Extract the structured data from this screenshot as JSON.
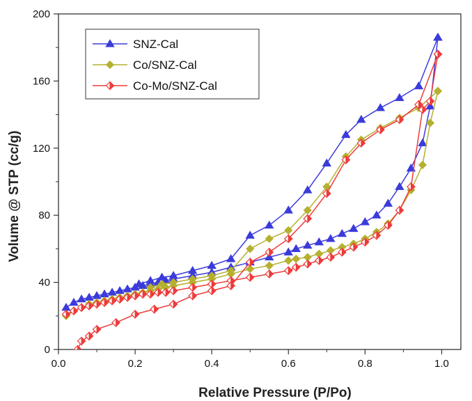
{
  "chart_data": {
    "type": "line",
    "title": "",
    "xlabel": "Relative Pressure (P/Po)",
    "ylabel": "Volume @ STP (cc/g)",
    "xlim": [
      0,
      1.05
    ],
    "ylim": [
      0,
      200
    ],
    "xticks": [
      0.0,
      0.2,
      0.4,
      0.6,
      0.8,
      1.0
    ],
    "xtick_labels": [
      "0.0",
      "0.2",
      "0.4",
      "0.6",
      "0.8",
      "1.0"
    ],
    "yticks": [
      0,
      40,
      80,
      120,
      160,
      200
    ],
    "ytick_labels": [
      "0",
      "40",
      "80",
      "120",
      "160",
      "200"
    ],
    "grid": false,
    "legend_position": "top-left",
    "series": [
      {
        "name": "SNZ-Cal",
        "color": "#3b3bdc",
        "marker": "triangle",
        "adsorption": [
          [
            0.02,
            25
          ],
          [
            0.04,
            28
          ],
          [
            0.06,
            30
          ],
          [
            0.08,
            31
          ],
          [
            0.1,
            32
          ],
          [
            0.12,
            33
          ],
          [
            0.14,
            34
          ],
          [
            0.16,
            35
          ],
          [
            0.18,
            36
          ],
          [
            0.2,
            37
          ],
          [
            0.22,
            38
          ],
          [
            0.24,
            39
          ],
          [
            0.26,
            40
          ],
          [
            0.28,
            41
          ],
          [
            0.3,
            42
          ],
          [
            0.35,
            44
          ],
          [
            0.4,
            46
          ],
          [
            0.45,
            49
          ],
          [
            0.5,
            52
          ],
          [
            0.55,
            55
          ],
          [
            0.6,
            58
          ],
          [
            0.62,
            60
          ],
          [
            0.65,
            62
          ],
          [
            0.68,
            64
          ],
          [
            0.71,
            66
          ],
          [
            0.74,
            69
          ],
          [
            0.77,
            72
          ],
          [
            0.8,
            76
          ],
          [
            0.83,
            80
          ],
          [
            0.86,
            87
          ],
          [
            0.89,
            97
          ],
          [
            0.92,
            108
          ],
          [
            0.95,
            123
          ],
          [
            0.97,
            145
          ],
          [
            0.99,
            186
          ]
        ],
        "desorption": [
          [
            0.99,
            186
          ],
          [
            0.94,
            157
          ],
          [
            0.89,
            150
          ],
          [
            0.84,
            144
          ],
          [
            0.79,
            137
          ],
          [
            0.75,
            128
          ],
          [
            0.7,
            111
          ],
          [
            0.65,
            95
          ],
          [
            0.6,
            83
          ],
          [
            0.55,
            74
          ],
          [
            0.5,
            68
          ],
          [
            0.45,
            54
          ],
          [
            0.4,
            50
          ],
          [
            0.35,
            47
          ],
          [
            0.3,
            44
          ],
          [
            0.27,
            43
          ],
          [
            0.24,
            41
          ],
          [
            0.21,
            39
          ]
        ]
      },
      {
        "name": "Co/SNZ-Cal",
        "color": "#b5b02e",
        "marker": "diamond",
        "adsorption": [
          [
            0.02,
            20
          ],
          [
            0.04,
            23
          ],
          [
            0.06,
            25
          ],
          [
            0.08,
            27
          ],
          [
            0.1,
            28
          ],
          [
            0.12,
            29
          ],
          [
            0.14,
            30
          ],
          [
            0.16,
            31
          ],
          [
            0.18,
            32
          ],
          [
            0.2,
            33
          ],
          [
            0.22,
            34
          ],
          [
            0.24,
            35
          ],
          [
            0.26,
            36
          ],
          [
            0.28,
            37
          ],
          [
            0.3,
            38
          ],
          [
            0.35,
            40
          ],
          [
            0.4,
            42
          ],
          [
            0.45,
            45
          ],
          [
            0.5,
            48
          ],
          [
            0.55,
            50
          ],
          [
            0.6,
            53
          ],
          [
            0.62,
            54
          ],
          [
            0.65,
            55
          ],
          [
            0.68,
            57
          ],
          [
            0.71,
            59
          ],
          [
            0.74,
            61
          ],
          [
            0.77,
            63
          ],
          [
            0.8,
            66
          ],
          [
            0.83,
            70
          ],
          [
            0.86,
            75
          ],
          [
            0.89,
            83
          ],
          [
            0.92,
            95
          ],
          [
            0.95,
            110
          ],
          [
            0.97,
            135
          ],
          [
            0.99,
            154
          ]
        ],
        "desorption": [
          [
            0.99,
            154
          ],
          [
            0.94,
            144
          ],
          [
            0.89,
            138
          ],
          [
            0.84,
            132
          ],
          [
            0.79,
            125
          ],
          [
            0.75,
            115
          ],
          [
            0.7,
            97
          ],
          [
            0.65,
            83
          ],
          [
            0.6,
            71
          ],
          [
            0.55,
            66
          ],
          [
            0.5,
            60
          ],
          [
            0.45,
            47
          ],
          [
            0.4,
            44
          ],
          [
            0.35,
            42
          ],
          [
            0.3,
            40
          ],
          [
            0.27,
            39
          ],
          [
            0.24,
            37
          ]
        ]
      },
      {
        "name": "Co-Mo/SNZ-Cal",
        "color": "#ee3b3b",
        "marker": "half-diamond",
        "adsorption": [
          [
            0.02,
            21
          ],
          [
            0.04,
            23
          ],
          [
            0.06,
            25
          ],
          [
            0.08,
            26
          ],
          [
            0.1,
            27
          ],
          [
            0.12,
            28
          ],
          [
            0.14,
            29
          ],
          [
            0.16,
            30
          ],
          [
            0.18,
            31
          ],
          [
            0.2,
            32
          ],
          [
            0.22,
            33
          ],
          [
            0.24,
            33
          ],
          [
            0.26,
            34
          ],
          [
            0.28,
            34
          ],
          [
            0.3,
            35
          ],
          [
            0.35,
            37
          ],
          [
            0.4,
            39
          ],
          [
            0.45,
            41
          ],
          [
            0.5,
            43
          ],
          [
            0.55,
            45
          ],
          [
            0.6,
            47
          ],
          [
            0.62,
            49
          ],
          [
            0.65,
            51
          ],
          [
            0.68,
            53
          ],
          [
            0.71,
            55
          ],
          [
            0.74,
            58
          ],
          [
            0.77,
            61
          ],
          [
            0.8,
            64
          ],
          [
            0.83,
            68
          ],
          [
            0.86,
            74
          ],
          [
            0.89,
            83
          ],
          [
            0.92,
            97
          ],
          [
            0.95,
            143
          ],
          [
            0.97,
            148
          ],
          [
            0.99,
            176
          ]
        ],
        "desorption": [
          [
            0.99,
            176
          ],
          [
            0.94,
            146
          ],
          [
            0.89,
            137
          ],
          [
            0.84,
            131
          ],
          [
            0.79,
            123
          ],
          [
            0.75,
            113
          ],
          [
            0.7,
            93
          ],
          [
            0.65,
            78
          ],
          [
            0.6,
            66
          ],
          [
            0.55,
            58
          ],
          [
            0.5,
            52
          ],
          [
            0.45,
            38
          ],
          [
            0.4,
            35
          ],
          [
            0.35,
            32
          ],
          [
            0.3,
            27
          ],
          [
            0.25,
            24
          ],
          [
            0.2,
            21
          ],
          [
            0.15,
            16
          ],
          [
            0.1,
            12
          ],
          [
            0.08,
            8
          ],
          [
            0.06,
            5
          ],
          [
            0.05,
            0
          ]
        ]
      }
    ]
  }
}
